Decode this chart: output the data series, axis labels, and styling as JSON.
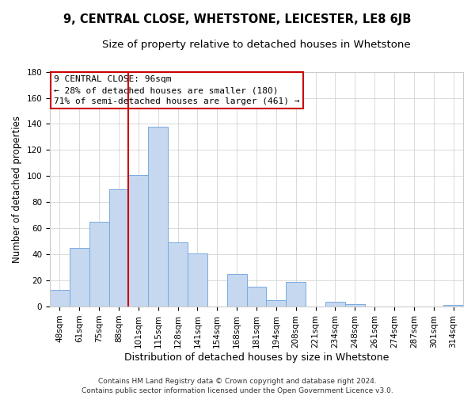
{
  "title": "9, CENTRAL CLOSE, WHETSTONE, LEICESTER, LE8 6JB",
  "subtitle": "Size of property relative to detached houses in Whetstone",
  "xlabel": "Distribution of detached houses by size in Whetstone",
  "ylabel": "Number of detached properties",
  "bar_labels": [
    "48sqm",
    "61sqm",
    "75sqm",
    "88sqm",
    "101sqm",
    "115sqm",
    "128sqm",
    "141sqm",
    "154sqm",
    "168sqm",
    "181sqm",
    "194sqm",
    "208sqm",
    "221sqm",
    "234sqm",
    "248sqm",
    "261sqm",
    "274sqm",
    "287sqm",
    "301sqm",
    "314sqm"
  ],
  "bar_values": [
    13,
    45,
    65,
    90,
    101,
    138,
    49,
    41,
    0,
    25,
    15,
    5,
    19,
    0,
    4,
    2,
    0,
    0,
    0,
    0,
    1
  ],
  "bar_color": "#c5d8ef",
  "bar_edge_color": "#7aabe0",
  "vline_x_idx": 4,
  "vline_color": "#cc0000",
  "ylim": [
    0,
    180
  ],
  "yticks": [
    0,
    20,
    40,
    60,
    80,
    100,
    120,
    140,
    160,
    180
  ],
  "annotation_title": "9 CENTRAL CLOSE: 96sqm",
  "annotation_line1": "← 28% of detached houses are smaller (180)",
  "annotation_line2": "71% of semi-detached houses are larger (461) →",
  "annotation_box_color": "#ffffff",
  "annotation_box_edge": "#cc0000",
  "footer_line1": "Contains HM Land Registry data © Crown copyright and database right 2024.",
  "footer_line2": "Contains public sector information licensed under the Open Government Licence v3.0.",
  "title_fontsize": 10.5,
  "subtitle_fontsize": 9.5,
  "xlabel_fontsize": 9,
  "ylabel_fontsize": 8.5,
  "tick_fontsize": 7.5,
  "footer_fontsize": 6.5,
  "annotation_fontsize": 8
}
